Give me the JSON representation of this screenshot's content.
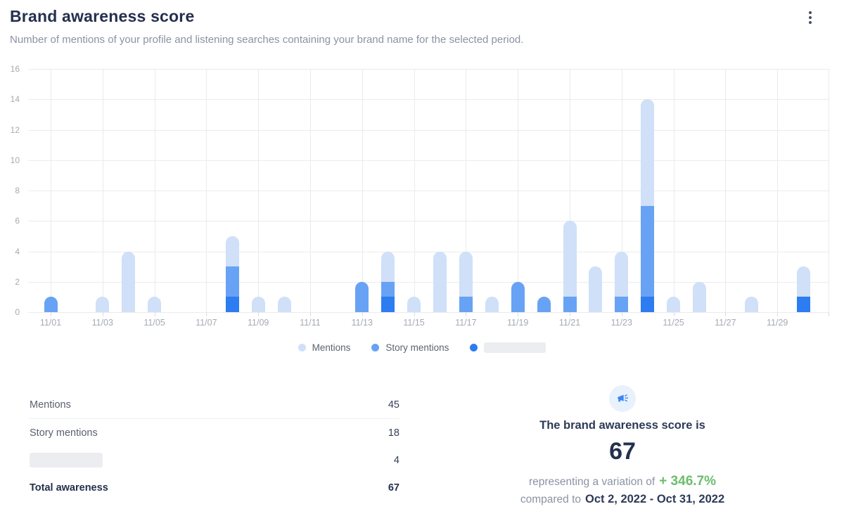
{
  "header": {
    "title": "Brand awareness score",
    "subtitle": "Number of mentions of your profile and listening searches containing your brand name for the selected period."
  },
  "colors": {
    "mentions": "#cfe0f8",
    "story_mentions": "#68a2f4",
    "dark_series": "#2d7cf1",
    "grid": "#ebebee",
    "axis_text": "#a5aab4",
    "green": "#6cbd6b",
    "title_text": "#24304e"
  },
  "chart_data": {
    "type": "bar",
    "stacked": true,
    "title": "Brand awareness score",
    "xlabel": "",
    "ylabel": "",
    "ylim": [
      0,
      16
    ],
    "ytick_step": 2,
    "grid": true,
    "legend_position": "bottom",
    "categories": [
      "11/01",
      "11/02",
      "11/03",
      "11/04",
      "11/05",
      "11/06",
      "11/07",
      "11/08",
      "11/09",
      "11/10",
      "11/11",
      "11/12",
      "11/13",
      "11/14",
      "11/15",
      "11/16",
      "11/17",
      "11/18",
      "11/19",
      "11/20",
      "11/21",
      "11/22",
      "11/23",
      "11/24",
      "11/25",
      "11/26",
      "11/27",
      "11/28",
      "11/29",
      "11/30"
    ],
    "x_tick_labels": [
      "11/01",
      "11/03",
      "11/05",
      "11/07",
      "11/09",
      "11/11",
      "11/13",
      "11/15",
      "11/17",
      "11/19",
      "11/21",
      "11/23",
      "11/25",
      "11/27",
      "11/29"
    ],
    "series": [
      {
        "name": "",
        "redacted": true,
        "color": "#2d7cf1",
        "values": [
          0,
          0,
          0,
          0,
          0,
          0,
          0,
          1,
          0,
          0,
          0,
          0,
          0,
          1,
          0,
          0,
          0,
          0,
          0,
          0,
          0,
          0,
          0,
          1,
          0,
          0,
          0,
          0,
          0,
          1
        ]
      },
      {
        "name": "Story mentions",
        "color": "#68a2f4",
        "values": [
          1,
          0,
          0,
          0,
          0,
          0,
          0,
          2,
          0,
          0,
          0,
          0,
          2,
          1,
          0,
          0,
          1,
          0,
          2,
          1,
          1,
          0,
          1,
          6,
          0,
          0,
          0,
          0,
          0,
          0
        ]
      },
      {
        "name": "Mentions",
        "color": "#cfe0f8",
        "values": [
          0,
          0,
          1,
          4,
          1,
          0,
          0,
          2,
          1,
          1,
          0,
          0,
          0,
          2,
          1,
          4,
          3,
          1,
          0,
          0,
          5,
          3,
          3,
          7,
          1,
          2,
          0,
          1,
          0,
          2
        ]
      }
    ]
  },
  "legend": {
    "items": [
      {
        "label": "Mentions",
        "color": "#cfe0f8",
        "redacted": false
      },
      {
        "label": "Story mentions",
        "color": "#68a2f4",
        "redacted": false
      },
      {
        "label": "",
        "color": "#2d7cf1",
        "redacted": true
      }
    ]
  },
  "stats": {
    "rows": [
      {
        "label": "Mentions",
        "value": "45",
        "redacted": false,
        "bold": false,
        "divided": true
      },
      {
        "label": "Story mentions",
        "value": "18",
        "redacted": false,
        "bold": false,
        "divided": false
      },
      {
        "label": "",
        "value": "4",
        "redacted": true,
        "bold": false,
        "divided": false
      },
      {
        "label": "Total awareness",
        "value": "67",
        "redacted": false,
        "bold": true,
        "divided": false
      }
    ]
  },
  "score_panel": {
    "heading": "The brand awareness score is",
    "score": "67",
    "variation_prefix": "representing a variation of",
    "variation_value": "+ 346.7%",
    "compared_prefix": "compared to",
    "compared_range": "Oct 2, 2022 - Oct 31, 2022"
  }
}
